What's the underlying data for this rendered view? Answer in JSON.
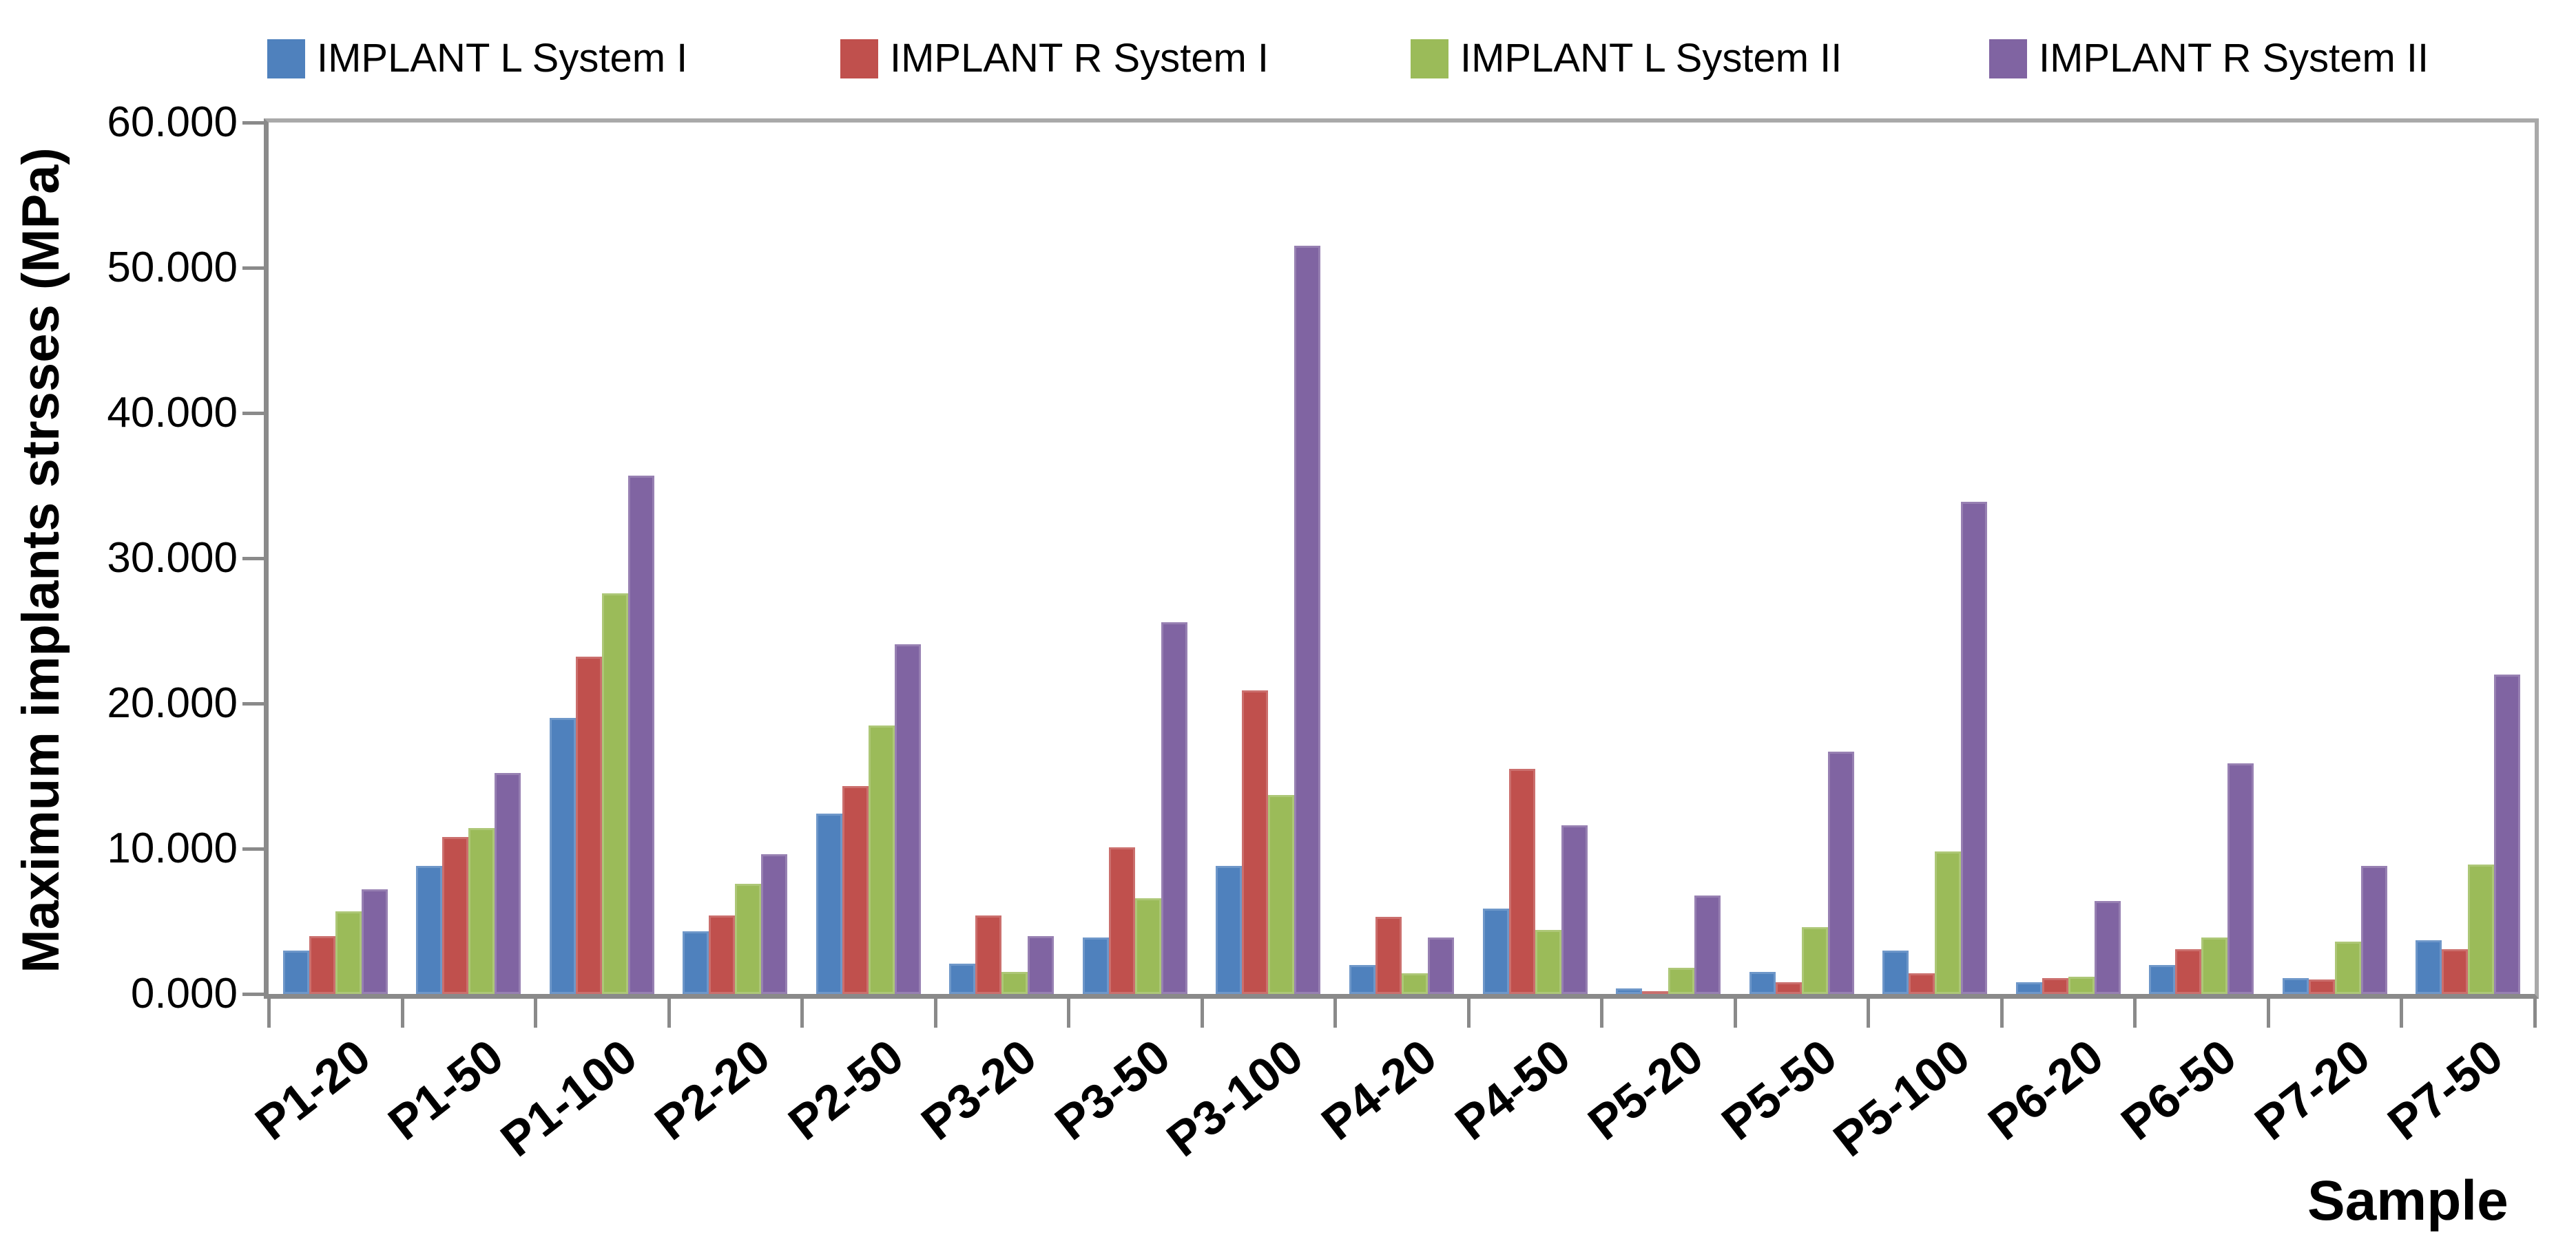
{
  "chart_data": {
    "type": "bar",
    "title": "",
    "xlabel": "Sample",
    "ylabel": "Maximum implants strsses (MPa)",
    "categories": [
      "P1-20",
      "P1-50",
      "P1-100",
      "P2-20",
      "P2-50",
      "P3-20",
      "P3-50",
      "P3-100",
      "P4-20",
      "P4-50",
      "P5-20",
      "P5-50",
      "P5-100",
      "P6-20",
      "P6-50",
      "P7-20",
      "P7-50"
    ],
    "series": [
      {
        "name": "IMPLANT L System I",
        "color": "#4F81BD",
        "values": [
          3.0,
          8.8,
          19.0,
          4.3,
          12.4,
          2.1,
          3.9,
          8.8,
          2.0,
          5.9,
          0.4,
          1.5,
          3.0,
          0.8,
          2.0,
          1.1,
          3.7
        ]
      },
      {
        "name": "IMPLANT R System I",
        "color": "#C0504D",
        "values": [
          4.0,
          10.8,
          23.2,
          5.4,
          14.3,
          5.4,
          10.1,
          20.9,
          5.3,
          15.5,
          0.2,
          0.8,
          1.4,
          1.1,
          3.1,
          1.0,
          3.1
        ]
      },
      {
        "name": "IMPLANT L System II",
        "color": "#9BBB59",
        "values": [
          5.7,
          11.4,
          27.6,
          7.6,
          18.5,
          1.5,
          6.6,
          13.7,
          1.4,
          4.4,
          1.8,
          4.6,
          9.8,
          1.2,
          3.9,
          3.6,
          8.9
        ]
      },
      {
        "name": "IMPLANT R System II",
        "color": "#8064A2",
        "values": [
          7.2,
          15.2,
          35.7,
          9.6,
          24.1,
          4.0,
          25.6,
          51.5,
          3.9,
          11.6,
          6.8,
          16.7,
          33.9,
          6.4,
          15.9,
          8.8,
          22.0
        ]
      }
    ],
    "ylim": [
      0,
      60
    ],
    "ytick_step": 10,
    "ytick_labels": [
      "0.000",
      "10.000",
      "20.000",
      "30.000",
      "40.000",
      "50.000",
      "60.000"
    ],
    "grid": false,
    "legend_position": "top"
  },
  "colors": {
    "axis_line": "#8a8a8a",
    "plot_border": "#a9a9a9",
    "text": "#000000",
    "background": "#ffffff"
  }
}
